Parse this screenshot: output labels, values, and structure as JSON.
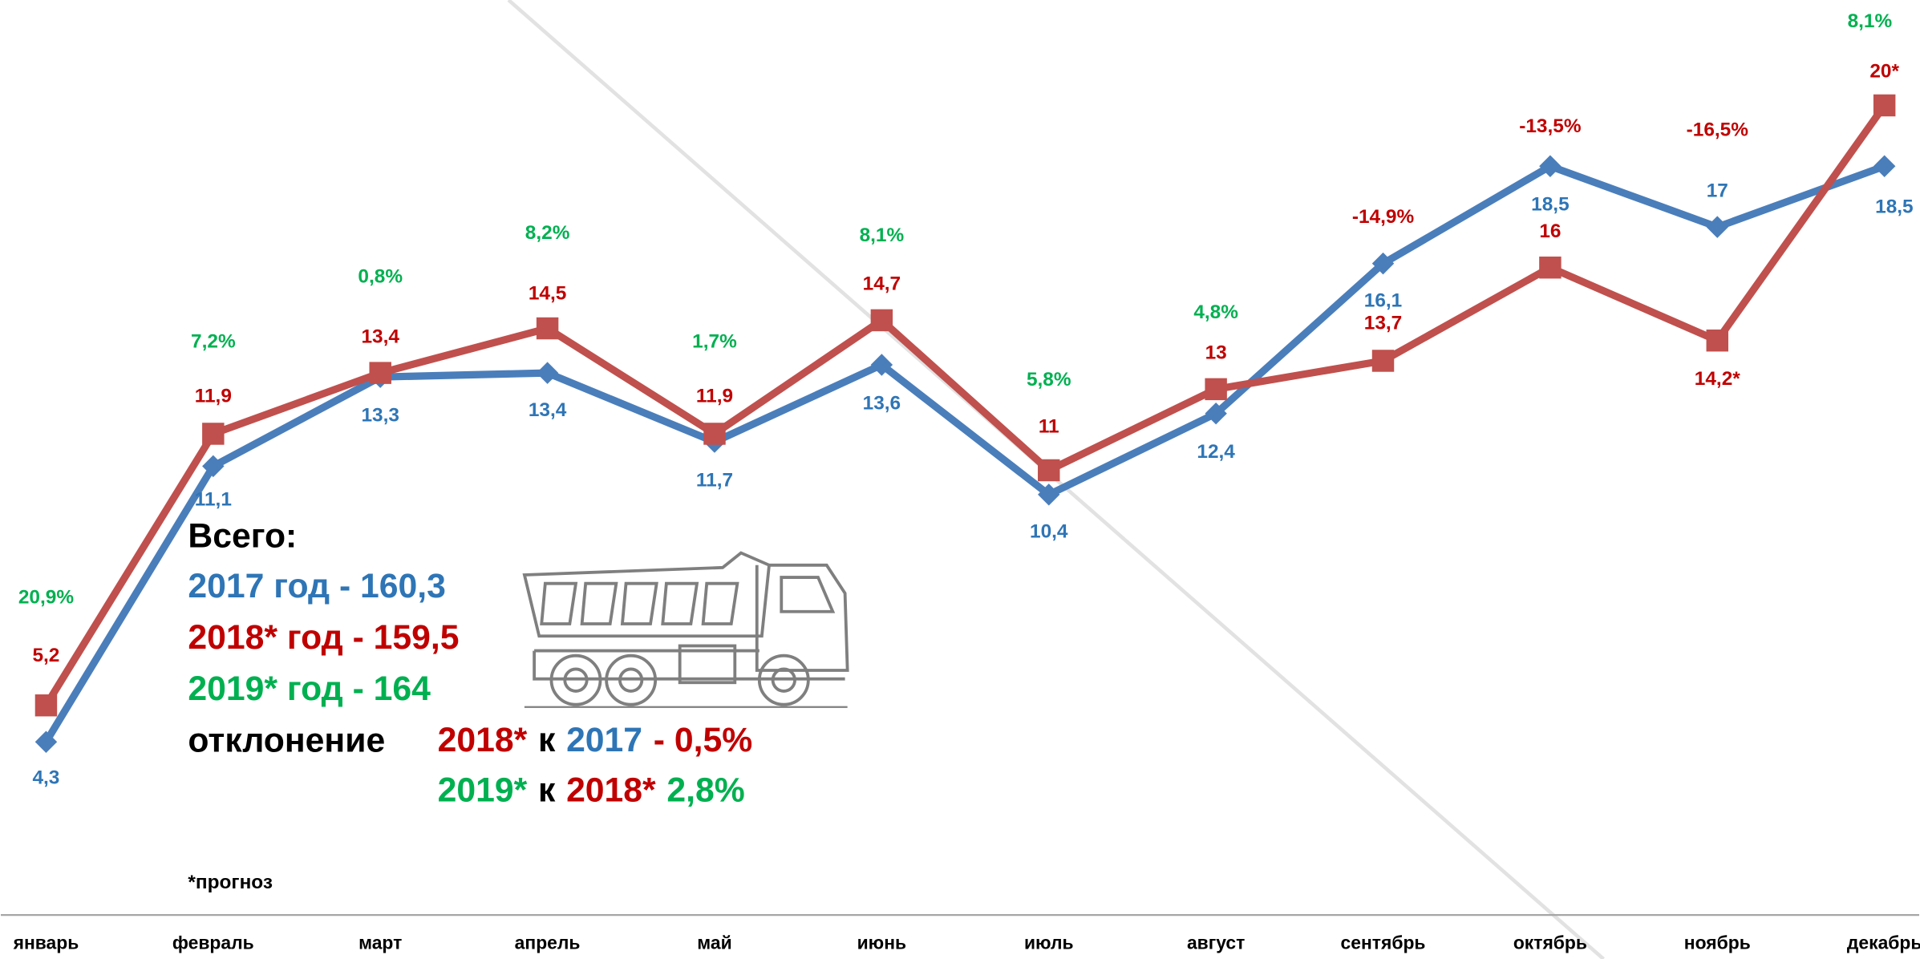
{
  "chart_data": {
    "type": "line",
    "categories": [
      "январь",
      "февраль",
      "март",
      "апрель",
      "май",
      "июнь",
      "июль",
      "август",
      "сентябрь",
      "октябрь",
      "ноябрь",
      "декабрь"
    ],
    "series": [
      {
        "color": "#4a7ebb",
        "label_color": "#2e75b6",
        "marker": "diamond",
        "values": [
          4.3,
          11.1,
          13.3,
          13.4,
          11.7,
          13.6,
          10.4,
          12.4,
          16.1,
          18.5,
          17,
          18.5
        ],
        "value_labels": [
          "4,3",
          "11,1",
          "13,3",
          "13,4",
          "11,7",
          "13,6",
          "10,4",
          "12,4",
          "16,1",
          "18,5",
          "17",
          "18,5"
        ]
      },
      {
        "color": "#c0504d",
        "label_color": "#c00000",
        "marker": "square",
        "values": [
          5.2,
          11.9,
          13.4,
          14.5,
          11.9,
          14.7,
          11,
          13,
          13.7,
          16,
          14.2,
          20
        ],
        "value_labels": [
          "5,2",
          "11,9",
          "13,4",
          "14,5",
          "11,9",
          "14,7",
          "11",
          "13",
          "13,7",
          "16",
          "14,2*",
          "20*"
        ]
      }
    ],
    "change_percent": {
      "color_up": "#00b050",
      "color_down": "#c00000",
      "values": [
        20.9,
        7.2,
        0.8,
        8.2,
        1.7,
        8.1,
        5.8,
        4.8,
        -14.9,
        -13.5,
        -16.5,
        8.1
      ],
      "value_labels": [
        "20,9%",
        "7,2%",
        "0,8%",
        "8,2%",
        "1,7%",
        "8,1%",
        "5,8%",
        "4,8%",
        "-14,9%",
        "-13,5%",
        "-16,5%",
        "8,1%"
      ]
    },
    "ylim": [
      0,
      22.6
    ]
  },
  "summary": {
    "title": "Всего:",
    "totals": [
      {
        "text": "2017 год - 160,3",
        "color": "#2e75b6"
      },
      {
        "text": "2018* год - 159,5",
        "color": "#c00000"
      },
      {
        "text": "2019* год - 164",
        "color": "#00b050"
      }
    ],
    "deviation_label": "отклонение",
    "deviations": [
      [
        {
          "text": "2018*",
          "color": "#c00000"
        },
        {
          "text": "к",
          "color": "#000000"
        },
        {
          "text": "2017",
          "color": "#2e75b6"
        },
        {
          "text": "- 0,5%",
          "color": "#c00000"
        }
      ],
      [
        {
          "text": "2019*",
          "color": "#00b050"
        },
        {
          "text": "к",
          "color": "#000000"
        },
        {
          "text": "2018*",
          "color": "#c00000"
        },
        {
          "text": "2,8%",
          "color": "#00b050"
        }
      ]
    ]
  },
  "footnote": "*прогноз"
}
